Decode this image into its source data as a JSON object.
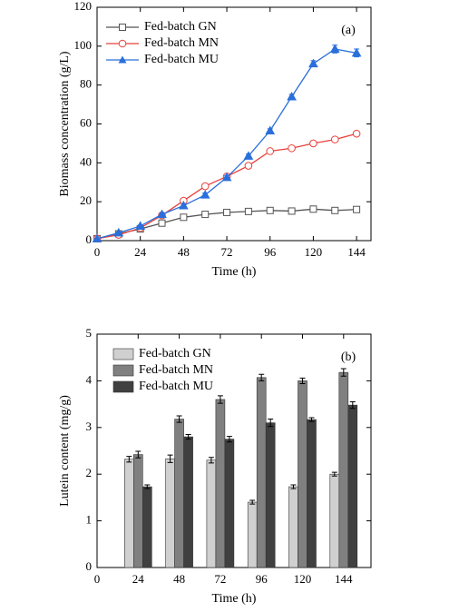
{
  "chart_data": [
    {
      "type": "line",
      "annotation": "(a)",
      "x_label": "Time (h)",
      "y_label": "Biomass concentration (g/L)",
      "x": [
        0,
        12,
        24,
        36,
        48,
        60,
        72,
        84,
        96,
        108,
        120,
        132,
        144
      ],
      "xlim": [
        0,
        152
      ],
      "xticks": [
        0,
        24,
        48,
        72,
        96,
        120,
        144
      ],
      "ylim": [
        0,
        120
      ],
      "yticks": [
        0,
        20,
        40,
        60,
        80,
        100,
        120
      ],
      "legend": "upper-left",
      "series": [
        {
          "name": "Fed-batch GN",
          "color": "#555555",
          "marker": "square-open",
          "values": [
            1,
            3.5,
            6,
            9,
            12,
            13.5,
            14.5,
            15,
            15.5,
            15.2,
            16.2,
            15.5,
            16
          ],
          "errors": [
            0.3,
            0.4,
            0.5,
            0.6,
            0.8,
            0.7,
            0.8,
            0.8,
            0.8,
            0.9,
            1,
            1,
            1
          ]
        },
        {
          "name": "Fed-batch MN",
          "color": "#e8413a",
          "marker": "circle-open",
          "values": [
            1,
            3,
            6.5,
            13,
            20.5,
            28,
            33,
            38.5,
            46,
            47.5,
            50,
            52,
            55
          ],
          "errors": [
            0.3,
            0.4,
            0.5,
            0.7,
            1,
            1,
            1,
            1.2,
            1,
            1,
            1.2,
            1,
            1
          ]
        },
        {
          "name": "Fed-batch MU",
          "color": "#2a6fdb",
          "marker": "triangle",
          "values": [
            1,
            4,
            7.5,
            13.5,
            18,
            23.5,
            32.5,
            43.5,
            56.5,
            74,
            91,
            98.5,
            96.5
          ],
          "errors": [
            0.3,
            0.4,
            0.5,
            0.7,
            0.8,
            1,
            1,
            1,
            1,
            1.2,
            1.5,
            2,
            2
          ]
        }
      ]
    },
    {
      "type": "bar",
      "annotation": "(b)",
      "x_label": "Time (h)",
      "y_label": "Lutein content (mg/g)",
      "x": [
        24,
        48,
        72,
        96,
        120,
        144
      ],
      "xlim": [
        0,
        160
      ],
      "xticks": [
        0,
        24,
        48,
        72,
        96,
        120,
        144
      ],
      "ylim": [
        0,
        5
      ],
      "yticks": [
        0,
        1,
        2,
        3,
        4,
        5
      ],
      "legend": "upper-left",
      "series": [
        {
          "name": "Fed-batch GN",
          "color": "#d0d0d0",
          "values": [
            2.32,
            2.33,
            2.3,
            1.4,
            1.73,
            2.0
          ],
          "errors": [
            0.06,
            0.08,
            0.06,
            0.04,
            0.04,
            0.04
          ]
        },
        {
          "name": "Fed-batch MN",
          "color": "#808080",
          "values": [
            2.42,
            3.18,
            3.6,
            4.07,
            4.0,
            4.18
          ],
          "errors": [
            0.07,
            0.07,
            0.08,
            0.07,
            0.06,
            0.08
          ]
        },
        {
          "name": "Fed-batch MU",
          "color": "#404040",
          "values": [
            1.73,
            2.8,
            2.75,
            3.1,
            3.17,
            3.48
          ],
          "errors": [
            0.04,
            0.05,
            0.06,
            0.08,
            0.04,
            0.07
          ]
        }
      ]
    }
  ]
}
